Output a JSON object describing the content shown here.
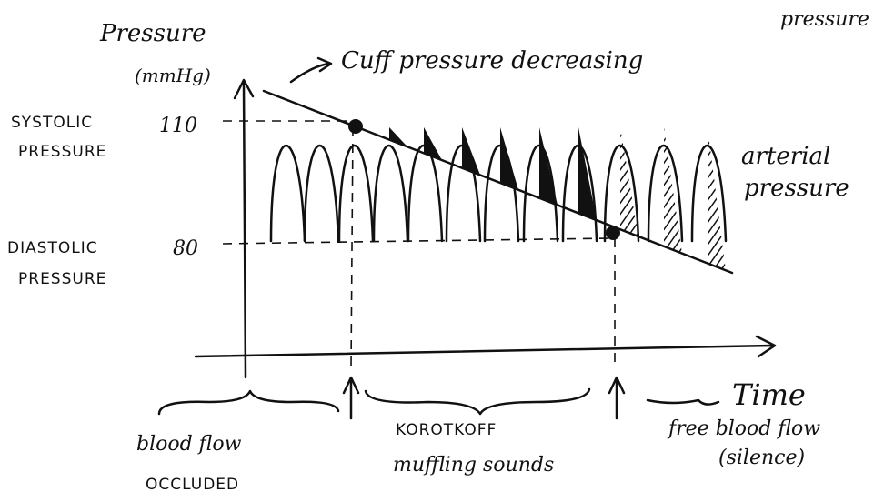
{
  "y_axis": {
    "title": "Pressure",
    "unit": "(mmHg)",
    "ticks": [
      "110",
      "80"
    ]
  },
  "x_axis": {
    "title": "Time"
  },
  "corner_note": "pressure",
  "annotations": {
    "cuff": "Cuff pressure decreasing",
    "arterial": [
      "arterial",
      "pressure"
    ]
  },
  "levels": [
    {
      "label": [
        "SYSTOLIC",
        "PRESSURE"
      ]
    },
    {
      "label": [
        "DIASTOLIC",
        "PRESSURE"
      ]
    }
  ],
  "phases": [
    {
      "label": [
        "blood flow",
        "OCCLUDED"
      ]
    },
    {
      "label": [
        "KOROTKOFF",
        "muffling sounds"
      ]
    },
    {
      "label": [
        "free blood flow",
        "(silence)"
      ]
    }
  ]
}
